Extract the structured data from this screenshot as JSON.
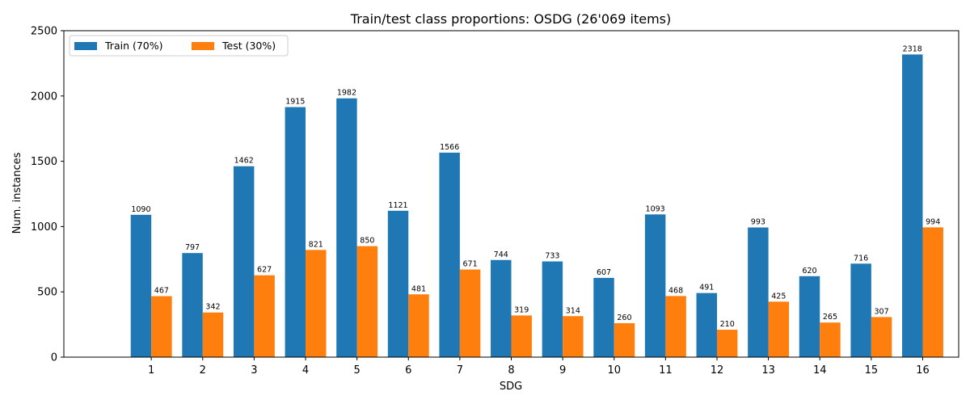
{
  "chart_data": {
    "type": "bar",
    "title": "Train/test class proportions: OSDG (26'069 items)",
    "xlabel": "SDG",
    "ylabel": "Num. instances",
    "ylim": [
      0,
      2500
    ],
    "yticks": [
      0,
      500,
      1000,
      1500,
      2000,
      2500
    ],
    "categories": [
      "1",
      "2",
      "3",
      "4",
      "5",
      "6",
      "7",
      "8",
      "9",
      "10",
      "11",
      "12",
      "13",
      "14",
      "15",
      "16"
    ],
    "series": [
      {
        "name": "Train (70%)",
        "color": "#1f77b4",
        "values": [
          1090,
          797,
          1462,
          1915,
          1982,
          1121,
          1566,
          744,
          733,
          607,
          1093,
          491,
          993,
          620,
          716,
          2318
        ]
      },
      {
        "name": "Test (30%)",
        "color": "#ff7f0e",
        "values": [
          467,
          342,
          627,
          821,
          850,
          481,
          671,
          319,
          314,
          260,
          468,
          210,
          425,
          265,
          307,
          994
        ]
      }
    ],
    "legend_position": "top-left",
    "grid": false
  }
}
